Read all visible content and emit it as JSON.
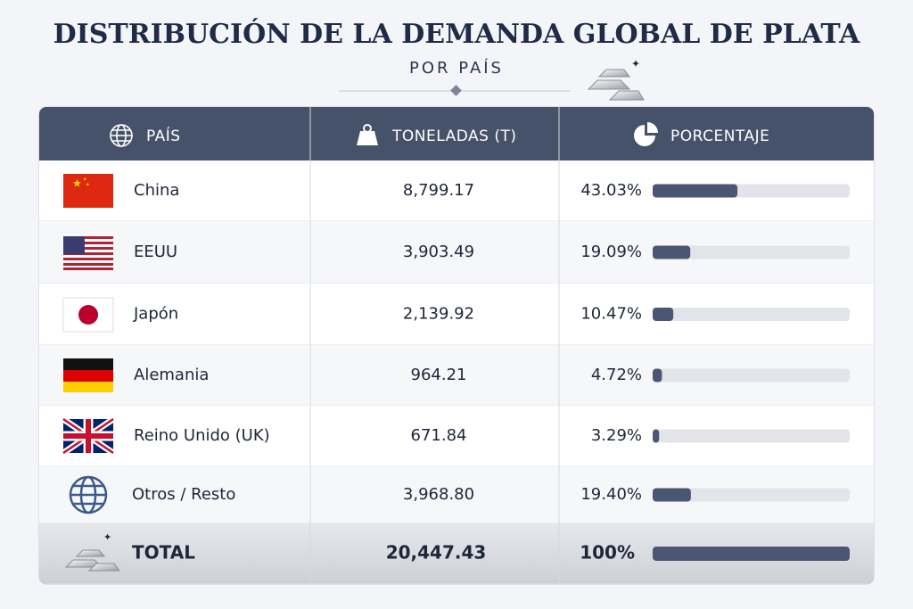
{
  "header": {
    "title": "DISTRIBUCIÓN DE LA DEMANDA GLOBAL DE PLATA",
    "subtitle": "POR PAÍS"
  },
  "table": {
    "columns": [
      "PAÍS",
      "TONELADAS (T)",
      "PORCENTAJE"
    ],
    "rows": [
      {
        "country": "China",
        "tonnes": "8,799.17",
        "percent": 43.03,
        "percent_label": "43.03%"
      },
      {
        "country": "EEUU",
        "tonnes": "3,903.49",
        "percent": 19.09,
        "percent_label": "19.09%"
      },
      {
        "country": "Japón",
        "tonnes": "2,139.92",
        "percent": 10.47,
        "percent_label": "10.47%"
      },
      {
        "country": "Alemania",
        "tonnes": "964.21",
        "percent": 4.72,
        "percent_label": "4.72%"
      },
      {
        "country": "Reino Unido (UK)",
        "tonnes": "671.84",
        "percent": 3.29,
        "percent_label": "3.29%"
      },
      {
        "country": "Otros / Resto",
        "tonnes": "3,968.80",
        "percent": 19.4,
        "percent_label": "19.40%"
      }
    ],
    "total": {
      "label": "TOTAL",
      "tonnes": "20,447.43",
      "percent": 100,
      "percent_label": "100%"
    }
  }
}
